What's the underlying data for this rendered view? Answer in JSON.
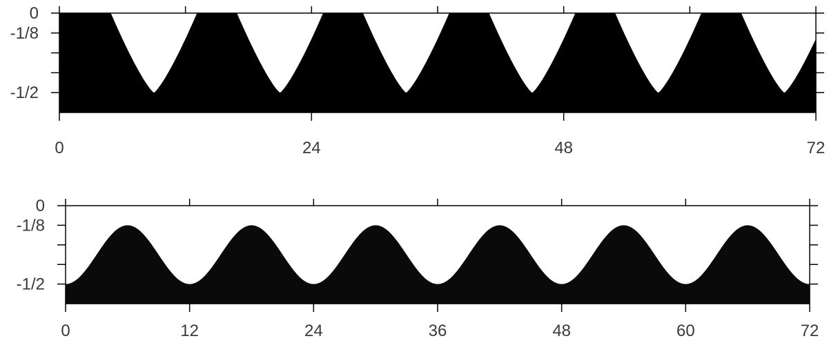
{
  "chart_data": [
    {
      "type": "area",
      "fill_color": "#000000",
      "xlim": [
        0,
        72
      ],
      "x_ticks": [
        0,
        24,
        48,
        72
      ],
      "x_minor_ticks": [
        12,
        36,
        60
      ],
      "x_tick_labels": [
        "0",
        "24",
        "48",
        "72"
      ],
      "ylim": [
        -0.625,
        0
      ],
      "y_ticks": [
        0,
        -0.125,
        -0.25,
        -0.375,
        -0.5
      ],
      "y_tick_labels": [
        "0",
        "-1/8",
        "",
        "",
        "-1/2"
      ],
      "profile": {
        "period": 12,
        "trough_x": [
          9,
          21,
          33,
          45,
          57,
          69
        ],
        "plateau_y": 0,
        "min_y": -0.5,
        "shape": "V-shaped notches"
      },
      "grid": false
    },
    {
      "type": "area",
      "fill_color": "#0a0a0a",
      "xlim": [
        0,
        72
      ],
      "x_ticks": [
        0,
        12,
        24,
        36,
        48,
        60,
        72
      ],
      "x_tick_labels": [
        "0",
        "12",
        "24",
        "36",
        "48",
        "60",
        "72"
      ],
      "ylim": [
        -0.625,
        0
      ],
      "y_ticks": [
        0,
        -0.125,
        -0.25,
        -0.375,
        -0.5
      ],
      "y_tick_labels": [
        "0",
        "-1/8",
        "",
        "",
        "-1/2"
      ],
      "profile": {
        "period": 12,
        "peak_x": [
          6,
          18,
          30,
          42,
          54,
          66
        ],
        "trough_x": [
          0,
          12,
          24,
          36,
          48,
          60,
          72
        ],
        "max_y": -0.125,
        "min_y": -0.5,
        "shape": "sinusoid"
      },
      "grid": false
    }
  ]
}
